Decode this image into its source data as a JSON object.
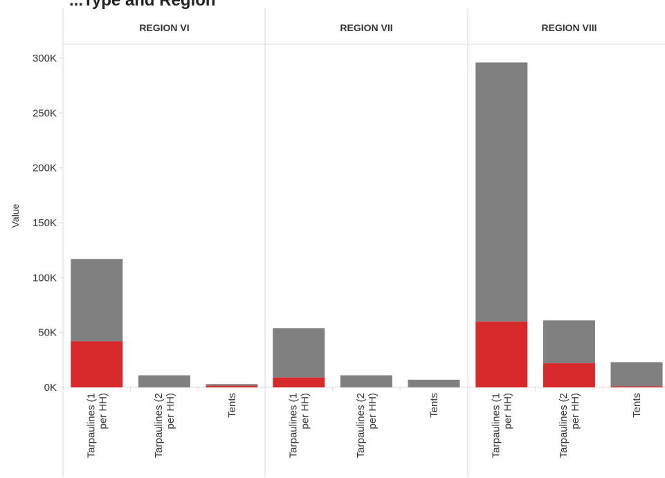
{
  "title": "...Type and Region",
  "colors": {
    "needed": "#808080",
    "delivered": "#d7282c",
    "grid": "#d9d9d9",
    "text": "#333333"
  },
  "chart_data": {
    "type": "bar",
    "stacked": true,
    "ylabel": "Value",
    "ylim": [
      0,
      300000
    ],
    "yticks": [
      0,
      50000,
      100000,
      150000,
      200000,
      250000,
      300000
    ],
    "ytick_labels": [
      "0K",
      "50K",
      "100K",
      "150K",
      "200K",
      "250K",
      "300K"
    ],
    "panels": [
      {
        "region": "REGION VI",
        "categories": [
          [
            "Tarpaulines (1",
            "per HH)"
          ],
          [
            "Tarpaulines (2",
            "per HH)"
          ],
          [
            "Tents"
          ]
        ],
        "delivered": [
          42000,
          0,
          1500
        ],
        "total": [
          117000,
          11000,
          3000
        ]
      },
      {
        "region": "REGION VII",
        "categories": [
          [
            "Tarpaulines (1",
            "per HH)"
          ],
          [
            "Tarpaulines (2",
            "per HH)"
          ],
          [
            "Tents"
          ]
        ],
        "delivered": [
          9000,
          0,
          0
        ],
        "total": [
          54000,
          11000,
          7000
        ]
      },
      {
        "region": "REGION VIII",
        "categories": [
          [
            "Tarpaulines (1",
            "per HH)"
          ],
          [
            "Tarpaulines (2",
            "per HH)"
          ],
          [
            "Tents"
          ]
        ],
        "delivered": [
          60000,
          22000,
          1000
        ],
        "total": [
          296000,
          61000,
          23000
        ]
      }
    ]
  }
}
